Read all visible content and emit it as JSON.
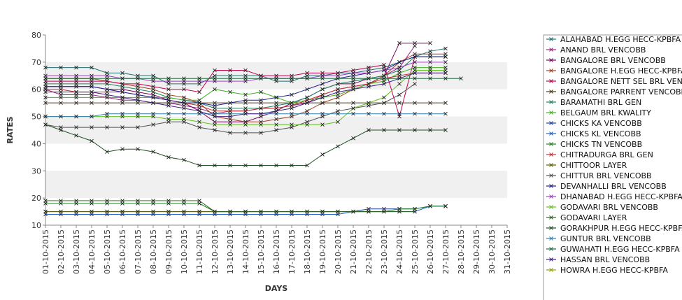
{
  "chart_data": {
    "type": "line",
    "xlabel": "DAYS",
    "ylabel": "RATES",
    "ylim": [
      10,
      80
    ],
    "yticks": [
      10,
      20,
      30,
      40,
      50,
      60,
      70,
      80
    ],
    "x": [
      "01-10-2015",
      "02-10-2015",
      "03-10-2015",
      "04-10-2015",
      "05-10-2015",
      "06-10-2015",
      "07-10-2015",
      "08-10-2015",
      "09-10-2015",
      "10-10-2015",
      "11-10-2015",
      "12-10-2015",
      "13-10-2015",
      "14-10-2015",
      "15-10-2015",
      "16-10-2015",
      "17-10-2015",
      "18-10-2015",
      "19-10-2015",
      "20-10-2015",
      "21-10-2015",
      "22-10-2015",
      "23-10-2015",
      "24-10-2015",
      "25-10-2015",
      "26-10-2015",
      "27-10-2015",
      "28-10-2015",
      "29-10-2015",
      "30-10-2015",
      "31-10-2015"
    ],
    "grid": "alternating horizontal bands",
    "legend_position": "right",
    "series": [
      {
        "name": "ALAHABAD H.EGG HECC-KPBFA",
        "color": "#1f6f6f",
        "values": [
          68,
          68,
          68,
          68,
          66,
          66,
          65,
          65,
          62,
          62,
          62,
          65,
          65,
          65,
          65,
          63,
          63,
          65,
          65,
          66,
          66,
          67,
          68,
          70,
          72,
          74,
          75,
          null,
          null,
          null,
          null
        ]
      },
      {
        "name": "ANAND BRL VENCOBB",
        "color": "#a02080",
        "values": [
          60,
          58,
          58,
          58,
          57,
          56,
          56,
          55,
          55,
          54,
          53,
          51,
          52,
          52,
          53,
          53,
          54,
          55,
          58,
          60,
          61,
          62,
          65,
          68,
          76,
          null,
          null,
          null,
          null,
          null,
          null
        ]
      },
      {
        "name": "BANGALORE BRL VENCOBB",
        "color": "#7a0060",
        "values": [
          61,
          61,
          61,
          61,
          60,
          60,
          59,
          58,
          56,
          55,
          52,
          48,
          48,
          48,
          50,
          52,
          55,
          57,
          60,
          62,
          62,
          64,
          65,
          77,
          77,
          77,
          null,
          null,
          null,
          null,
          null
        ]
      },
      {
        "name": "BANGALORE H.EGG HECC-KPBFA",
        "color": "#a04020",
        "values": [
          64,
          64,
          64,
          64,
          63,
          62,
          61,
          60,
          58,
          57,
          55,
          50,
          49,
          48,
          48,
          49,
          50,
          52,
          55,
          57,
          60,
          62,
          65,
          70,
          73,
          73,
          73,
          null,
          null,
          null,
          null
        ]
      },
      {
        "name": "BANGALORE NETT SEL BRL VENCOBB",
        "color": "#c00050",
        "values": [
          63,
          63,
          63,
          63,
          63,
          62,
          62,
          61,
          60,
          60,
          59,
          67,
          67,
          67,
          65,
          65,
          65,
          66,
          66,
          66,
          67,
          68,
          69,
          50,
          72,
          72,
          72,
          null,
          null,
          null,
          null
        ]
      },
      {
        "name": "BANGALORE PARRENT VENCOBB",
        "color": "#4a3a10",
        "values": [
          55,
          55,
          55,
          55,
          55,
          55,
          55,
          55,
          55,
          55,
          55,
          55,
          55,
          55,
          55,
          55,
          55,
          55,
          55,
          55,
          55,
          55,
          55,
          55,
          55,
          55,
          55,
          null,
          null,
          null,
          null
        ]
      },
      {
        "name": "BARAMATHI BRL GEN",
        "color": "#208060",
        "values": [
          62,
          62,
          62,
          62,
          62,
          61,
          60,
          59,
          57,
          56,
          55,
          53,
          53,
          53,
          53,
          54,
          55,
          57,
          60,
          62,
          63,
          64,
          65,
          67,
          72,
          72,
          72,
          null,
          null,
          null,
          null
        ]
      },
      {
        "name": "BELGAUM BRL KWALITY",
        "color": "#40b020",
        "values": [
          57,
          57,
          57,
          57,
          57,
          57,
          57,
          57,
          57,
          56,
          56,
          60,
          59,
          58,
          59,
          57,
          55,
          56,
          57,
          58,
          60,
          62,
          63,
          66,
          68,
          68,
          68,
          null,
          null,
          null,
          null
        ]
      },
      {
        "name": "CHICKS KA VENCOBB",
        "color": "#2040a0",
        "values": [
          15,
          15,
          15,
          15,
          15,
          15,
          15,
          15,
          15,
          15,
          15,
          15,
          15,
          15,
          15,
          15,
          15,
          15,
          15,
          15,
          15,
          16,
          16,
          16,
          16,
          17,
          17,
          null,
          null,
          null,
          null
        ]
      },
      {
        "name": "CHICKS KL VENCOBB",
        "color": "#2060c0",
        "values": [
          14,
          14,
          14,
          14,
          14,
          14,
          14,
          14,
          14,
          14,
          14,
          14,
          14,
          14,
          14,
          14,
          14,
          14,
          14,
          14,
          15,
          15,
          15,
          15,
          15,
          17,
          17,
          null,
          null,
          null,
          null
        ]
      },
      {
        "name": "CHICKS TN VENCOBB",
        "color": "#208020",
        "values": [
          18,
          18,
          18,
          18,
          18,
          18,
          18,
          18,
          18,
          18,
          18,
          15,
          15,
          15,
          15,
          15,
          15,
          15,
          15,
          15,
          15,
          15,
          15,
          16,
          16,
          17,
          17,
          null,
          null,
          null,
          null
        ]
      },
      {
        "name": "CHITRADURGA BRL GEN",
        "color": "#c03030",
        "values": [
          60,
          60,
          59,
          59,
          59,
          59,
          58,
          57,
          56,
          55,
          54,
          52,
          52,
          52,
          53,
          53,
          54,
          56,
          58,
          60,
          61,
          62,
          64,
          65,
          66,
          66,
          66,
          null,
          null,
          null,
          null
        ]
      },
      {
        "name": "CHITTOOR LAYER",
        "color": "#606000",
        "values": [
          15,
          15,
          15,
          15,
          15,
          15,
          15,
          15,
          15,
          15,
          15,
          15,
          15,
          15,
          null,
          null,
          null,
          null,
          null,
          null,
          null,
          null,
          null,
          null,
          null,
          null,
          null,
          null,
          null,
          null,
          null
        ]
      },
      {
        "name": "CHITTUR BRL VENCOBB",
        "color": "#505050",
        "values": [
          47,
          46,
          46,
          46,
          46,
          46,
          46,
          47,
          48,
          48,
          46,
          45,
          44,
          44,
          44,
          45,
          46,
          48,
          50,
          52,
          53,
          54,
          55,
          58,
          62,
          null,
          null,
          null,
          null,
          null,
          null
        ]
      },
      {
        "name": "DEVANHALLI BRL VENCOBB",
        "color": "#202090",
        "values": [
          61,
          61,
          61,
          61,
          60,
          59,
          58,
          57,
          56,
          55,
          55,
          54,
          55,
          56,
          56,
          57,
          58,
          60,
          62,
          64,
          65,
          66,
          67,
          70,
          72,
          72,
          72,
          null,
          null,
          null,
          null
        ]
      },
      {
        "name": "DHANABAD H.EGG HECC-KPBFA",
        "color": "#a040c0",
        "values": [
          65,
          65,
          65,
          65,
          65,
          64,
          64,
          63,
          63,
          63,
          63,
          63,
          63,
          63,
          64,
          64,
          64,
          64,
          65,
          65,
          66,
          66,
          67,
          68,
          70,
          70,
          70,
          null,
          null,
          null,
          null
        ]
      },
      {
        "name": "GODAVARI BRL VENCOBB",
        "color": "#60c020",
        "values": [
          50,
          50,
          50,
          50,
          50,
          50,
          50,
          50,
          49,
          49,
          48,
          47,
          47,
          47,
          47,
          47,
          47,
          47,
          47,
          48,
          53,
          55,
          57,
          62,
          67,
          67,
          67,
          null,
          null,
          null,
          null
        ]
      },
      {
        "name": "GODAVARI LAYER",
        "color": "#306020",
        "values": [
          19,
          19,
          19,
          19,
          19,
          19,
          19,
          19,
          19,
          19,
          19,
          15,
          15,
          15,
          15,
          15,
          15,
          15,
          15,
          15,
          15,
          15,
          15,
          15,
          15,
          null,
          null,
          null,
          null,
          null,
          null
        ]
      },
      {
        "name": "GORAKHPUR H.EGG HECC-KPBFA",
        "color": "#205020",
        "values": [
          47,
          45,
          43,
          41,
          37,
          38,
          38,
          37,
          35,
          34,
          32,
          32,
          32,
          32,
          32,
          32,
          32,
          32,
          36,
          39,
          42,
          45,
          45,
          45,
          45,
          45,
          45,
          null,
          null,
          null,
          null
        ]
      },
      {
        "name": "GUNTUR BRL VENCOBB",
        "color": "#3080b0",
        "values": [
          50,
          50,
          50,
          50,
          51,
          51,
          51,
          51,
          51,
          51,
          51,
          51,
          51,
          51,
          51,
          51,
          51,
          51,
          51,
          51,
          51,
          51,
          51,
          51,
          51,
          51,
          51,
          null,
          null,
          null,
          null
        ]
      },
      {
        "name": "GUWAHATI H.EGG HECC-KPBFA",
        "color": "#207040",
        "values": [
          64,
          64,
          64,
          64,
          64,
          64,
          64,
          64,
          64,
          64,
          64,
          64,
          64,
          64,
          64,
          64,
          64,
          64,
          64,
          64,
          64,
          64,
          64,
          64,
          64,
          64,
          64,
          64,
          null,
          null,
          null
        ]
      },
      {
        "name": "HASSAN BRL VENCOBB",
        "color": "#402080",
        "values": [
          59,
          59,
          59,
          59,
          58,
          57,
          56,
          55,
          54,
          53,
          52,
          50,
          50,
          51,
          51,
          52,
          53,
          55,
          57,
          59,
          60,
          61,
          62,
          64,
          66,
          66,
          66,
          null,
          null,
          null,
          null
        ]
      },
      {
        "name": "HOWRA H.EGG HECC-KPBFA",
        "color": "#90a000",
        "values": [
          null,
          null,
          null,
          null,
          null,
          null,
          null,
          null,
          null,
          null,
          null,
          null,
          null,
          null,
          null,
          null,
          null,
          null,
          null,
          null,
          null,
          null,
          null,
          null,
          null,
          null,
          null,
          null,
          null,
          null,
          null
        ]
      }
    ]
  }
}
